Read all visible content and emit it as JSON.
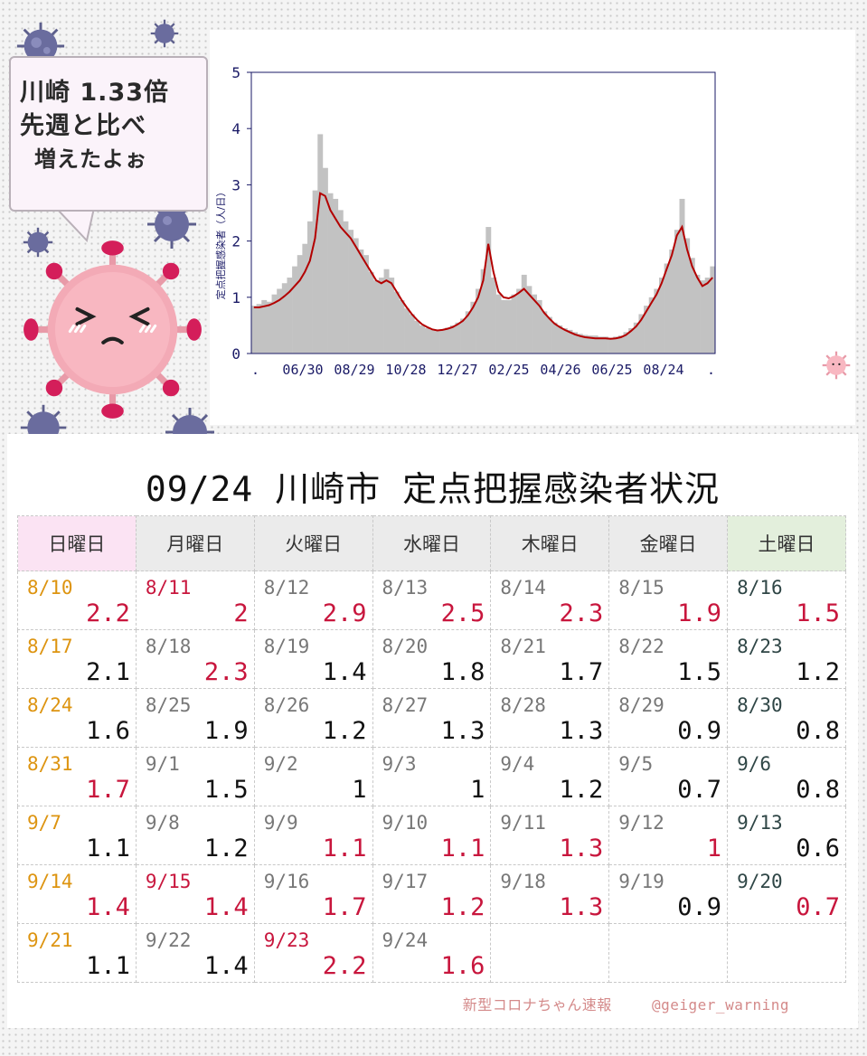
{
  "bubble": {
    "line1": "川崎 1.33倍",
    "line2": "先週と比べ",
    "line3": "増えたよぉ"
  },
  "chart_data": {
    "type": "bar",
    "ylabel": "定点把握感染者（人/日）",
    "ylim": [
      0,
      5
    ],
    "y_ticks": [
      "0",
      "1",
      "2",
      "3",
      "4",
      "5"
    ],
    "x_ticks": [
      ".",
      "06/30",
      "08/29",
      "10/28",
      "12/27",
      "02/25",
      "04/26",
      "06/25",
      "08/24",
      "."
    ],
    "series": [
      {
        "values": [
          0.85,
          0.88,
          0.95,
          0.92,
          1.05,
          1.15,
          1.25,
          1.35,
          1.55,
          1.75,
          1.95,
          2.35,
          2.9,
          3.9,
          3.3,
          2.85,
          2.75,
          2.55,
          2.35,
          2.2,
          2.05,
          1.85,
          1.75,
          1.45,
          1.3,
          1.35,
          1.5,
          1.35,
          1.1,
          0.95,
          0.8,
          0.7,
          0.58,
          0.5,
          0.45,
          0.42,
          0.4,
          0.43,
          0.46,
          0.5,
          0.55,
          0.62,
          0.75,
          0.92,
          1.15,
          1.5,
          2.25,
          1.35,
          1.05,
          0.95,
          0.95,
          1.05,
          1.15,
          1.4,
          1.2,
          1.05,
          0.95,
          0.75,
          0.65,
          0.55,
          0.5,
          0.45,
          0.42,
          0.38,
          0.35,
          0.33,
          0.32,
          0.32,
          0.3,
          0.3,
          0.28,
          0.3,
          0.32,
          0.38,
          0.45,
          0.55,
          0.7,
          0.85,
          1.0,
          1.15,
          1.35,
          1.6,
          1.85,
          2.2,
          2.75,
          2.05,
          1.7,
          1.4,
          1.3,
          1.35,
          1.55
        ]
      },
      {
        "values": [
          0.82,
          0.82,
          0.84,
          0.86,
          0.9,
          0.95,
          1.02,
          1.1,
          1.2,
          1.3,
          1.45,
          1.65,
          2.05,
          2.85,
          2.8,
          2.55,
          2.4,
          2.25,
          2.15,
          2.05,
          1.9,
          1.75,
          1.6,
          1.45,
          1.3,
          1.25,
          1.3,
          1.25,
          1.1,
          0.95,
          0.82,
          0.7,
          0.6,
          0.52,
          0.47,
          0.43,
          0.41,
          0.42,
          0.44,
          0.47,
          0.52,
          0.58,
          0.68,
          0.82,
          1.0,
          1.3,
          1.95,
          1.45,
          1.1,
          1.0,
          0.98,
          1.02,
          1.08,
          1.15,
          1.05,
          0.95,
          0.85,
          0.72,
          0.62,
          0.53,
          0.47,
          0.42,
          0.38,
          0.34,
          0.31,
          0.29,
          0.28,
          0.27,
          0.27,
          0.27,
          0.26,
          0.27,
          0.29,
          0.33,
          0.4,
          0.48,
          0.6,
          0.75,
          0.9,
          1.05,
          1.25,
          1.5,
          1.75,
          2.1,
          2.25,
          1.85,
          1.55,
          1.35,
          1.2,
          1.25,
          1.35
        ]
      }
    ],
    "colors": {
      "bars": "#c2c2c2",
      "line": "#b30000",
      "axis": "#1a1a66"
    }
  },
  "calendar": {
    "title": "09/24 川崎市 定点把握感染者状況",
    "headers": [
      "日曜日",
      "月曜日",
      "火曜日",
      "水曜日",
      "木曜日",
      "金曜日",
      "土曜日"
    ],
    "weeks": [
      [
        {
          "date": "8/10",
          "value": "2.2",
          "red": true
        },
        {
          "date": "8/11",
          "value": "2",
          "red": true,
          "holiday": true
        },
        {
          "date": "8/12",
          "value": "2.9",
          "red": true
        },
        {
          "date": "8/13",
          "value": "2.5",
          "red": true
        },
        {
          "date": "8/14",
          "value": "2.3",
          "red": true
        },
        {
          "date": "8/15",
          "value": "1.9",
          "red": true
        },
        {
          "date": "8/16",
          "value": "1.5",
          "red": true
        }
      ],
      [
        {
          "date": "8/17",
          "value": "2.1"
        },
        {
          "date": "8/18",
          "value": "2.3",
          "red": true
        },
        {
          "date": "8/19",
          "value": "1.4"
        },
        {
          "date": "8/20",
          "value": "1.8"
        },
        {
          "date": "8/21",
          "value": "1.7"
        },
        {
          "date": "8/22",
          "value": "1.5"
        },
        {
          "date": "8/23",
          "value": "1.2"
        }
      ],
      [
        {
          "date": "8/24",
          "value": "1.6"
        },
        {
          "date": "8/25",
          "value": "1.9"
        },
        {
          "date": "8/26",
          "value": "1.2"
        },
        {
          "date": "8/27",
          "value": "1.3"
        },
        {
          "date": "8/28",
          "value": "1.3"
        },
        {
          "date": "8/29",
          "value": "0.9"
        },
        {
          "date": "8/30",
          "value": "0.8"
        }
      ],
      [
        {
          "date": "8/31",
          "value": "1.7",
          "red": true
        },
        {
          "date": "9/1",
          "value": "1.5"
        },
        {
          "date": "9/2",
          "value": "1"
        },
        {
          "date": "9/3",
          "value": "1"
        },
        {
          "date": "9/4",
          "value": "1.2"
        },
        {
          "date": "9/5",
          "value": "0.7"
        },
        {
          "date": "9/6",
          "value": "0.8"
        }
      ],
      [
        {
          "date": "9/7",
          "value": "1.1"
        },
        {
          "date": "9/8",
          "value": "1.2"
        },
        {
          "date": "9/9",
          "value": "1.1",
          "red": true
        },
        {
          "date": "9/10",
          "value": "1.1",
          "red": true
        },
        {
          "date": "9/11",
          "value": "1.3",
          "red": true
        },
        {
          "date": "9/12",
          "value": "1",
          "red": true
        },
        {
          "date": "9/13",
          "value": "0.6"
        }
      ],
      [
        {
          "date": "9/14",
          "value": "1.4",
          "red": true
        },
        {
          "date": "9/15",
          "value": "1.4",
          "red": true,
          "holiday": true
        },
        {
          "date": "9/16",
          "value": "1.7",
          "red": true
        },
        {
          "date": "9/17",
          "value": "1.2",
          "red": true
        },
        {
          "date": "9/18",
          "value": "1.3",
          "red": true
        },
        {
          "date": "9/19",
          "value": "0.9"
        },
        {
          "date": "9/20",
          "value": "0.7",
          "red": true
        }
      ],
      [
        {
          "date": "9/21",
          "value": "1.1"
        },
        {
          "date": "9/22",
          "value": "1.4"
        },
        {
          "date": "9/23",
          "value": "2.2",
          "red": true,
          "holiday": true
        },
        {
          "date": "9/24",
          "value": "1.6",
          "red": true
        },
        {
          "date": "",
          "value": ""
        },
        {
          "date": "",
          "value": ""
        },
        {
          "date": "",
          "value": ""
        }
      ]
    ]
  },
  "footer": {
    "credit": "新型コロナちゃん速報",
    "handle": "@geiger_warning"
  },
  "colors": {
    "sunday_date": "#dd9410",
    "saturday_date": "#2f4646",
    "increase_red": "#c8163d",
    "sunday_header": "#fbe3f3",
    "saturday_header": "#e3efdc"
  }
}
